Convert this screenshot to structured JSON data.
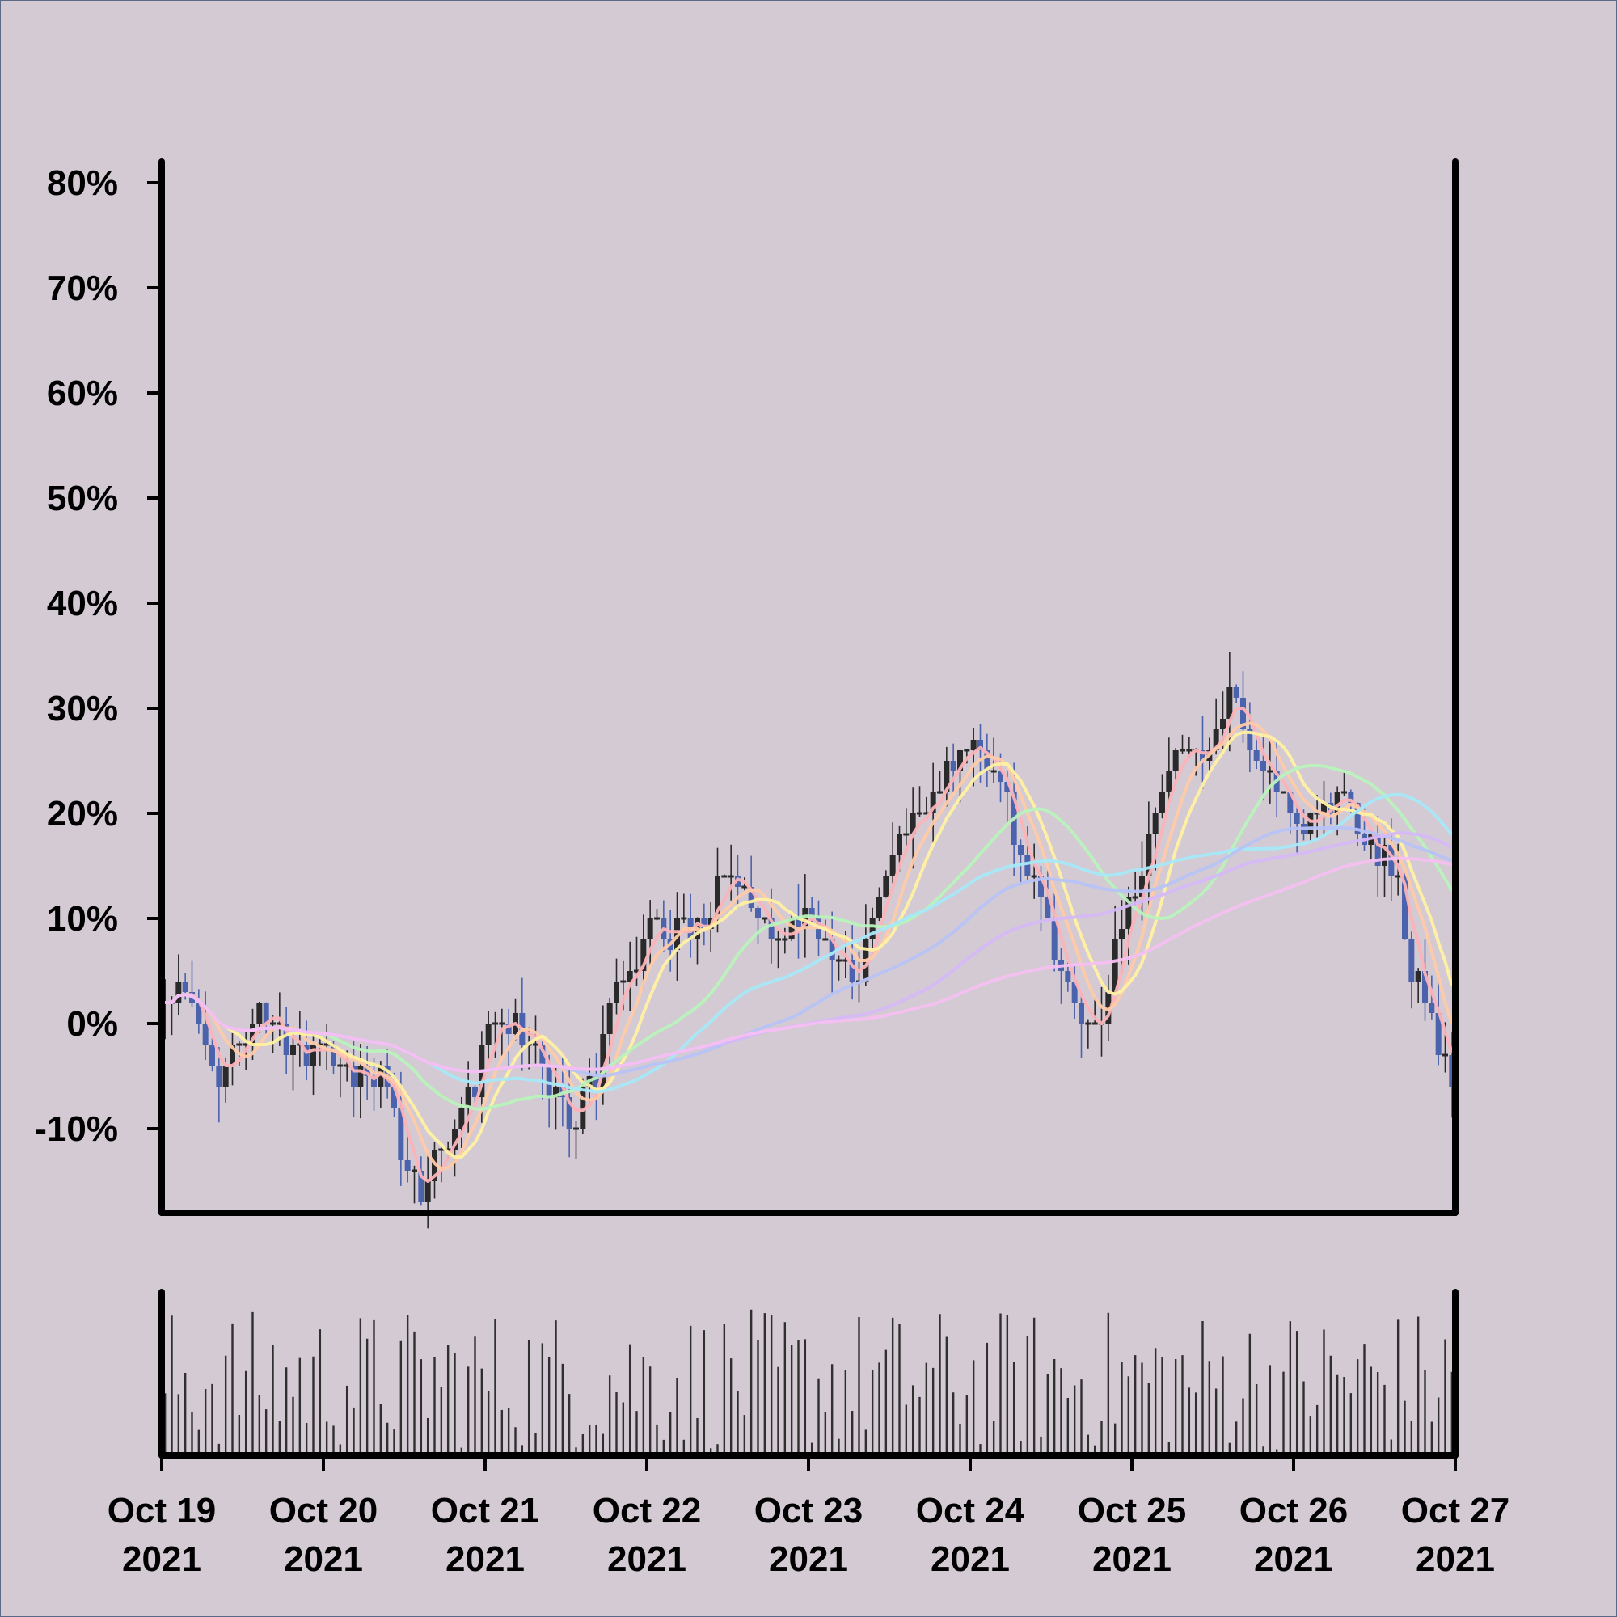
{
  "chart_data": {
    "type": "candlestick",
    "title": "",
    "xlabel": "",
    "ylabel": "",
    "ylim": [
      -18,
      82
    ],
    "y_ticks": [
      {
        "value": -10,
        "label": "-10%"
      },
      {
        "value": 0,
        "label": "0%"
      },
      {
        "value": 10,
        "label": "10%"
      },
      {
        "value": 20,
        "label": "20%"
      },
      {
        "value": 30,
        "label": "30%"
      },
      {
        "value": 40,
        "label": "40%"
      },
      {
        "value": 50,
        "label": "50%"
      },
      {
        "value": 60,
        "label": "60%"
      },
      {
        "value": 70,
        "label": "70%"
      },
      {
        "value": 80,
        "label": "80%"
      }
    ],
    "x_ticks": [
      {
        "day": 0,
        "line1": "Oct 19",
        "line2": "2021"
      },
      {
        "day": 1,
        "line1": "Oct 20",
        "line2": "2021"
      },
      {
        "day": 2,
        "line1": "Oct 21",
        "line2": "2021"
      },
      {
        "day": 3,
        "line1": "Oct 22",
        "line2": "2021"
      },
      {
        "day": 4,
        "line1": "Oct 23",
        "line2": "2021"
      },
      {
        "day": 5,
        "line1": "Oct 24",
        "line2": "2021"
      },
      {
        "day": 6,
        "line1": "Oct 25",
        "line2": "2021"
      },
      {
        "day": 7,
        "line1": "Oct 26",
        "line2": "2021"
      },
      {
        "day": 8,
        "line1": "Oct 27",
        "line2": "2021"
      }
    ],
    "grid": false,
    "legend": "none",
    "price_path_days": [
      0,
      0.15,
      0.35,
      0.65,
      0.8,
      1.05,
      1.4,
      1.5,
      1.6,
      1.75,
      1.85,
      2.05,
      2.25,
      2.5,
      2.55,
      2.65,
      2.85,
      3.0,
      3.25,
      3.5,
      3.6,
      3.75,
      4.0,
      4.2,
      4.3,
      4.5,
      4.7,
      5.0,
      5.15,
      5.4,
      5.55,
      5.75,
      6.0,
      6.15,
      6.25,
      6.45,
      6.55,
      6.6,
      6.75,
      7.0,
      7.2,
      7.3,
      7.5,
      7.6,
      7.75,
      7.9,
      8.0
    ],
    "price_path_values": [
      2,
      3,
      -5,
      1,
      -2,
      -3,
      -6,
      -13,
      -15,
      -12,
      -8,
      0,
      -2,
      -8,
      -10,
      -5,
      5,
      9,
      8,
      14,
      12,
      9,
      10,
      6,
      5,
      15,
      20,
      27,
      25,
      13,
      5,
      -1,
      12,
      20,
      25,
      25,
      29,
      31,
      26,
      20,
      19,
      22,
      17,
      15,
      5,
      -2,
      -5
    ],
    "candle_series_color": "#4b63ad",
    "candle_dark_color": "#2a2a2a",
    "volume_color": "#2f2f2f",
    "ma_colors": [
      "#fcb3b8",
      "#ffc9a8",
      "#fff0a2",
      "#b8f2ba",
      "#a8e8f8",
      "#b7c3f7",
      "#d5b8f8",
      "#f6bff1"
    ],
    "background": "#d3cad3"
  }
}
